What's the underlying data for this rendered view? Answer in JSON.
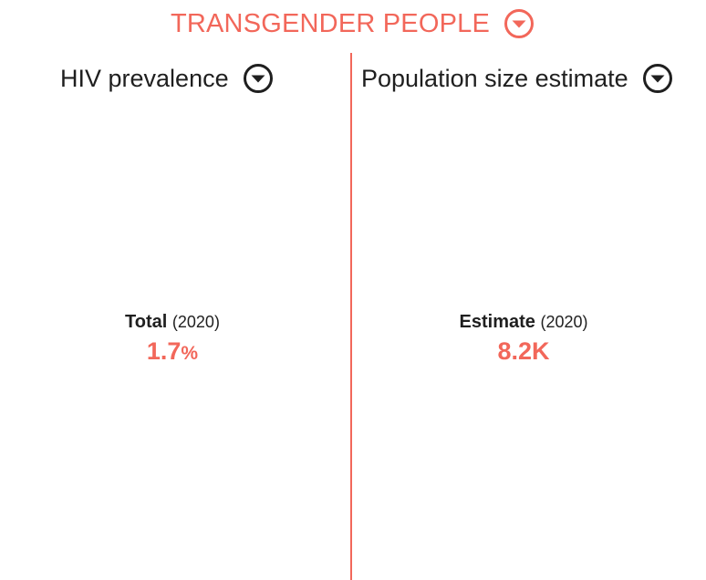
{
  "header": {
    "title": "TRANSGENDER PEOPLE",
    "dropdown_icon": "chevron-down-circle-icon",
    "accent_color": "#f2675a"
  },
  "panels": {
    "left": {
      "title": "HIV prevalence",
      "dropdown_icon": "chevron-down-circle-icon",
      "stat_label": "Total",
      "stat_year": "(2020)",
      "stat_value": "1.7",
      "stat_unit": "%"
    },
    "right": {
      "title": "Population size estimate",
      "dropdown_icon": "chevron-down-circle-icon",
      "stat_label": "Estimate",
      "stat_year": "(2020)",
      "stat_value": "8.2K",
      "stat_unit": ""
    }
  }
}
